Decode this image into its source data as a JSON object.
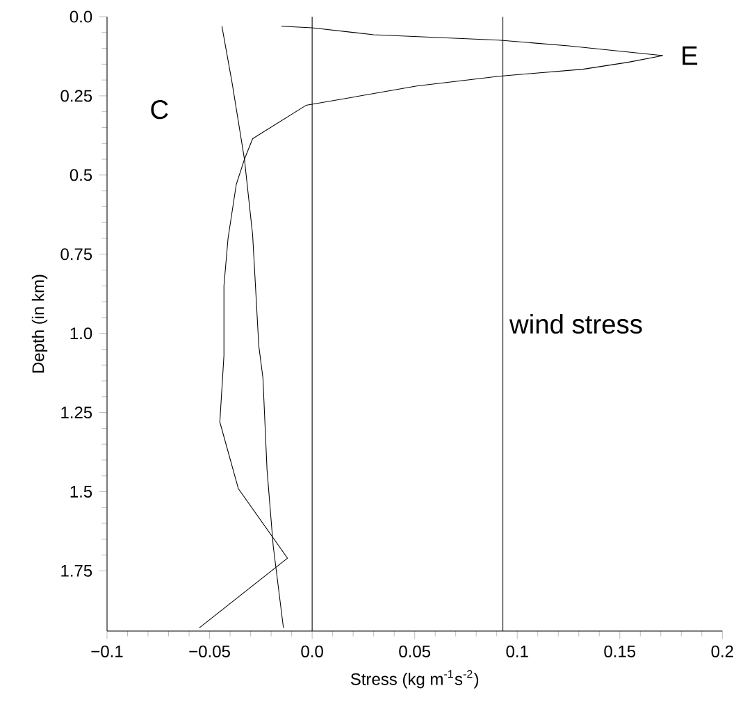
{
  "chart_data": {
    "type": "line",
    "xlabel": "Stress (kg m$^{-1}$s$^{-2}$)",
    "ylabel": "Depth (in km)",
    "xlim": [
      -0.1,
      0.2
    ],
    "ylim": [
      1.94,
      0
    ],
    "xticks": [
      {
        "value": -0.1,
        "label": "−0.1"
      },
      {
        "value": -0.05,
        "label": "−0.05"
      },
      {
        "value": 0,
        "label": "0.0"
      },
      0.05,
      0.1,
      0.15,
      0.2
    ],
    "yticks": [
      {
        "value": 0,
        "label": "0.0"
      },
      0.25,
      0.5,
      0.75,
      {
        "value": 1,
        "label": "1.0"
      },
      1.25,
      1.5,
      1.75
    ],
    "series": [
      {
        "name": "C",
        "color": "#000000",
        "x": [
          -0.044,
          -0.039,
          -0.033,
          -0.029,
          -0.026,
          -0.024,
          -0.022,
          -0.019,
          -0.014
        ],
        "values": [
          0.03,
          0.21,
          0.45,
          0.69,
          1.04,
          1.14,
          1.43,
          1.67,
          1.93
        ]
      },
      {
        "name": "E",
        "color": "#000000",
        "x": [
          -0.015,
          0.0,
          0.03,
          0.091,
          0.125,
          0.171,
          0.154,
          0.132,
          0.091,
          0.051,
          -0.003,
          -0.029,
          -0.033,
          -0.037,
          -0.041,
          -0.043,
          -0.043,
          -0.045,
          -0.036,
          -0.012,
          -0.055
        ],
        "values": [
          0.03,
          0.035,
          0.057,
          0.074,
          0.092,
          0.123,
          0.144,
          0.166,
          0.188,
          0.219,
          0.28,
          0.385,
          0.45,
          0.53,
          0.7,
          0.85,
          1.07,
          1.28,
          1.49,
          1.71,
          1.93
        ]
      }
    ],
    "ref_lines": [
      {
        "axis": "x",
        "value": 0
      },
      {
        "axis": "x",
        "value": 0.093,
        "label": "wind stress"
      }
    ],
    "marker": "none",
    "line_style": "solid"
  }
}
